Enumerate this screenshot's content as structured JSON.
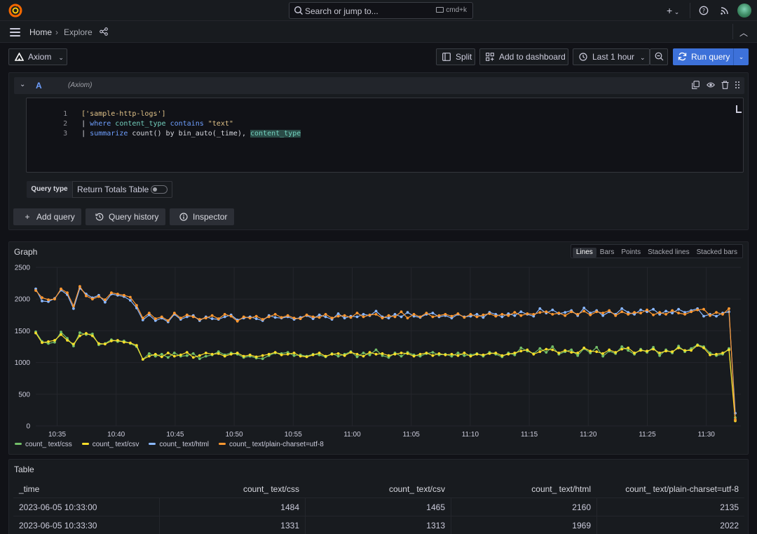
{
  "topbar": {
    "search_placeholder": "Search or jump to...",
    "search_shortcut": "cmd+k",
    "add_icon": "plus-icon",
    "help_icon": "help-icon",
    "news_icon": "rss-icon"
  },
  "breadcrumb": {
    "home": "Home",
    "separator": "›",
    "current": "Explore"
  },
  "toolbar": {
    "datasource": "Axiom",
    "split": "Split",
    "add_to_dashboard": "Add to dashboard",
    "time_range": "Last 1 hour",
    "run_query": "Run query"
  },
  "query": {
    "ref_id": "A",
    "datasource_label": "(Axiom)",
    "lines": [
      {
        "num": "1"
      },
      {
        "num": "2"
      },
      {
        "num": "3"
      }
    ],
    "tokens": {
      "l1_str": "['sample-http-logs']",
      "l2_pipe": "| ",
      "l2_kw": "where ",
      "l2_field": "content_type",
      "l2_op": " contains ",
      "l2_str": "\"text\"",
      "l3_pipe": "| ",
      "l3_kw": "summarize ",
      "l3_fn": "count",
      "l3_mid": "() by ",
      "l3_fn2": "bin_auto",
      "l3_arg": "(_time), ",
      "l3_hl": "content_type"
    },
    "query_type_label": "Query type",
    "query_type_value": "Return Totals Table",
    "return_totals_enabled": false,
    "add_query": "Add query",
    "query_history": "Query history",
    "inspector": "Inspector"
  },
  "graph": {
    "title": "Graph",
    "modes": [
      "Lines",
      "Bars",
      "Points",
      "Stacked lines",
      "Stacked bars"
    ],
    "active_mode": "Lines"
  },
  "chart_data": {
    "type": "line",
    "xlabel": "",
    "ylabel": "",
    "ylim": [
      0,
      2500
    ],
    "y_ticks": [
      "0",
      "500",
      "1000",
      "1500",
      "2000",
      "2500"
    ],
    "x_ticks": [
      "10:35",
      "10:40",
      "10:45",
      "10:50",
      "10:55",
      "11:00",
      "11:05",
      "11:10",
      "11:15",
      "11:20",
      "11:25",
      "11:30"
    ],
    "x_start": "10:33:00",
    "x_step_seconds": 30,
    "grid": true,
    "legend": "bottom-left",
    "series": [
      {
        "name": "count_ text/css",
        "color": "#73bf69",
        "values": [
          1484,
          1331,
          1300,
          1320,
          1480,
          1380,
          1260,
          1470,
          1440,
          1450,
          1280,
          1300,
          1360,
          1330,
          1340,
          1300,
          1250,
          1050,
          1140,
          1100,
          1130,
          1080,
          1150,
          1100,
          1110,
          1140,
          1060,
          1100,
          1120,
          1170,
          1120,
          1150,
          1130,
          1080,
          1100,
          1070,
          1060,
          1110,
          1150,
          1140,
          1160,
          1110,
          1120,
          1100,
          1130,
          1120,
          1090,
          1140,
          1100,
          1130,
          1170,
          1090,
          1150,
          1120,
          1200,
          1110,
          1080,
          1150,
          1100,
          1160,
          1120,
          1100,
          1140,
          1160,
          1120,
          1130,
          1100,
          1150,
          1110,
          1120,
          1140,
          1100,
          1160,
          1130,
          1090,
          1150,
          1120,
          1230,
          1180,
          1140,
          1220,
          1160,
          1250,
          1130,
          1170,
          1200,
          1110,
          1220,
          1150,
          1240,
          1100,
          1180,
          1140,
          1250,
          1190,
          1130,
          1210,
          1160,
          1240,
          1110,
          1200,
          1150,
          1260,
          1170,
          1220,
          1280,
          1250,
          1150,
          1110,
          1130,
          1220,
          130
        ]
      },
      {
        "name": "count_ text/csv",
        "color": "#fade2a",
        "values": [
          1465,
          1313,
          1330,
          1350,
          1440,
          1350,
          1290,
          1420,
          1460,
          1420,
          1300,
          1290,
          1340,
          1350,
          1320,
          1310,
          1270,
          1050,
          1100,
          1130,
          1090,
          1150,
          1100,
          1120,
          1160,
          1080,
          1110,
          1150,
          1130,
          1140,
          1100,
          1130,
          1150,
          1100,
          1120,
          1090,
          1110,
          1130,
          1160,
          1120,
          1130,
          1150,
          1100,
          1090,
          1120,
          1150,
          1100,
          1130,
          1140,
          1110,
          1160,
          1130,
          1100,
          1160,
          1130,
          1140,
          1110,
          1130,
          1150,
          1140,
          1100,
          1130,
          1150,
          1110,
          1140,
          1120,
          1130,
          1110,
          1150,
          1100,
          1130,
          1120,
          1140,
          1150,
          1110,
          1130,
          1150,
          1180,
          1200,
          1130,
          1170,
          1210,
          1200,
          1150,
          1190,
          1160,
          1150,
          1230,
          1180,
          1170,
          1140,
          1200,
          1160,
          1210,
          1230,
          1150,
          1190,
          1180,
          1210,
          1150,
          1180,
          1170,
          1230,
          1190,
          1190,
          1270,
          1230,
          1120,
          1130,
          1150,
          1200,
          80
        ]
      },
      {
        "name": "count_ text/html",
        "color": "#8ab8ff",
        "values": [
          2160,
          1969,
          1960,
          2010,
          2140,
          2070,
          1850,
          2170,
          2080,
          2020,
          2060,
          1950,
          2080,
          2060,
          2040,
          1980,
          1860,
          1670,
          1750,
          1660,
          1700,
          1640,
          1760,
          1680,
          1720,
          1740,
          1660,
          1720,
          1690,
          1680,
          1720,
          1750,
          1670,
          1700,
          1720,
          1690,
          1660,
          1740,
          1710,
          1700,
          1720,
          1680,
          1710,
          1740,
          1690,
          1750,
          1720,
          1680,
          1770,
          1700,
          1730,
          1720,
          1760,
          1740,
          1810,
          1720,
          1700,
          1760,
          1720,
          1790,
          1730,
          1710,
          1760,
          1780,
          1720,
          1740,
          1700,
          1760,
          1720,
          1730,
          1760,
          1710,
          1790,
          1760,
          1720,
          1770,
          1740,
          1800,
          1760,
          1730,
          1850,
          1780,
          1830,
          1770,
          1790,
          1820,
          1740,
          1860,
          1780,
          1820,
          1740,
          1800,
          1760,
          1850,
          1790,
          1760,
          1830,
          1800,
          1840,
          1760,
          1810,
          1780,
          1840,
          1790,
          1820,
          1850,
          1730,
          1760,
          1730,
          1780,
          1800,
          200
        ]
      },
      {
        "name": "count_ text/plain-charset=utf-8",
        "color": "#ff9830",
        "values": [
          2135,
          2022,
          1990,
          2000,
          2160,
          2100,
          1890,
          2200,
          2050,
          2000,
          2040,
          1990,
          2100,
          2080,
          2060,
          2030,
          1900,
          1700,
          1780,
          1690,
          1720,
          1660,
          1780,
          1700,
          1750,
          1720,
          1680,
          1700,
          1740,
          1690,
          1760,
          1730,
          1650,
          1720,
          1700,
          1730,
          1680,
          1720,
          1760,
          1710,
          1740,
          1700,
          1690,
          1750,
          1720,
          1710,
          1760,
          1700,
          1730,
          1740,
          1710,
          1780,
          1720,
          1750,
          1760,
          1700,
          1740,
          1720,
          1800,
          1700,
          1760,
          1720,
          1780,
          1720,
          1740,
          1760,
          1730,
          1770,
          1710,
          1760,
          1720,
          1750,
          1770,
          1730,
          1760,
          1740,
          1790,
          1740,
          1770,
          1760,
          1790,
          1800,
          1760,
          1780,
          1740,
          1800,
          1760,
          1810,
          1750,
          1800,
          1780,
          1820,
          1740,
          1800,
          1760,
          1790,
          1780,
          1830,
          1750,
          1790,
          1760,
          1820,
          1780,
          1760,
          1800,
          1830,
          1840,
          1740,
          1790,
          1760,
          1850,
          100
        ]
      }
    ]
  },
  "table": {
    "title": "Table",
    "columns": [
      "_time",
      "count_ text/css",
      "count_ text/csv",
      "count_ text/html",
      "count_ text/plain-charset=utf-8"
    ],
    "rows": [
      [
        "2023-06-05 10:33:00",
        "1484",
        "1465",
        "2160",
        "2135"
      ],
      [
        "2023-06-05 10:33:30",
        "1331",
        "1313",
        "1969",
        "2022"
      ]
    ]
  }
}
